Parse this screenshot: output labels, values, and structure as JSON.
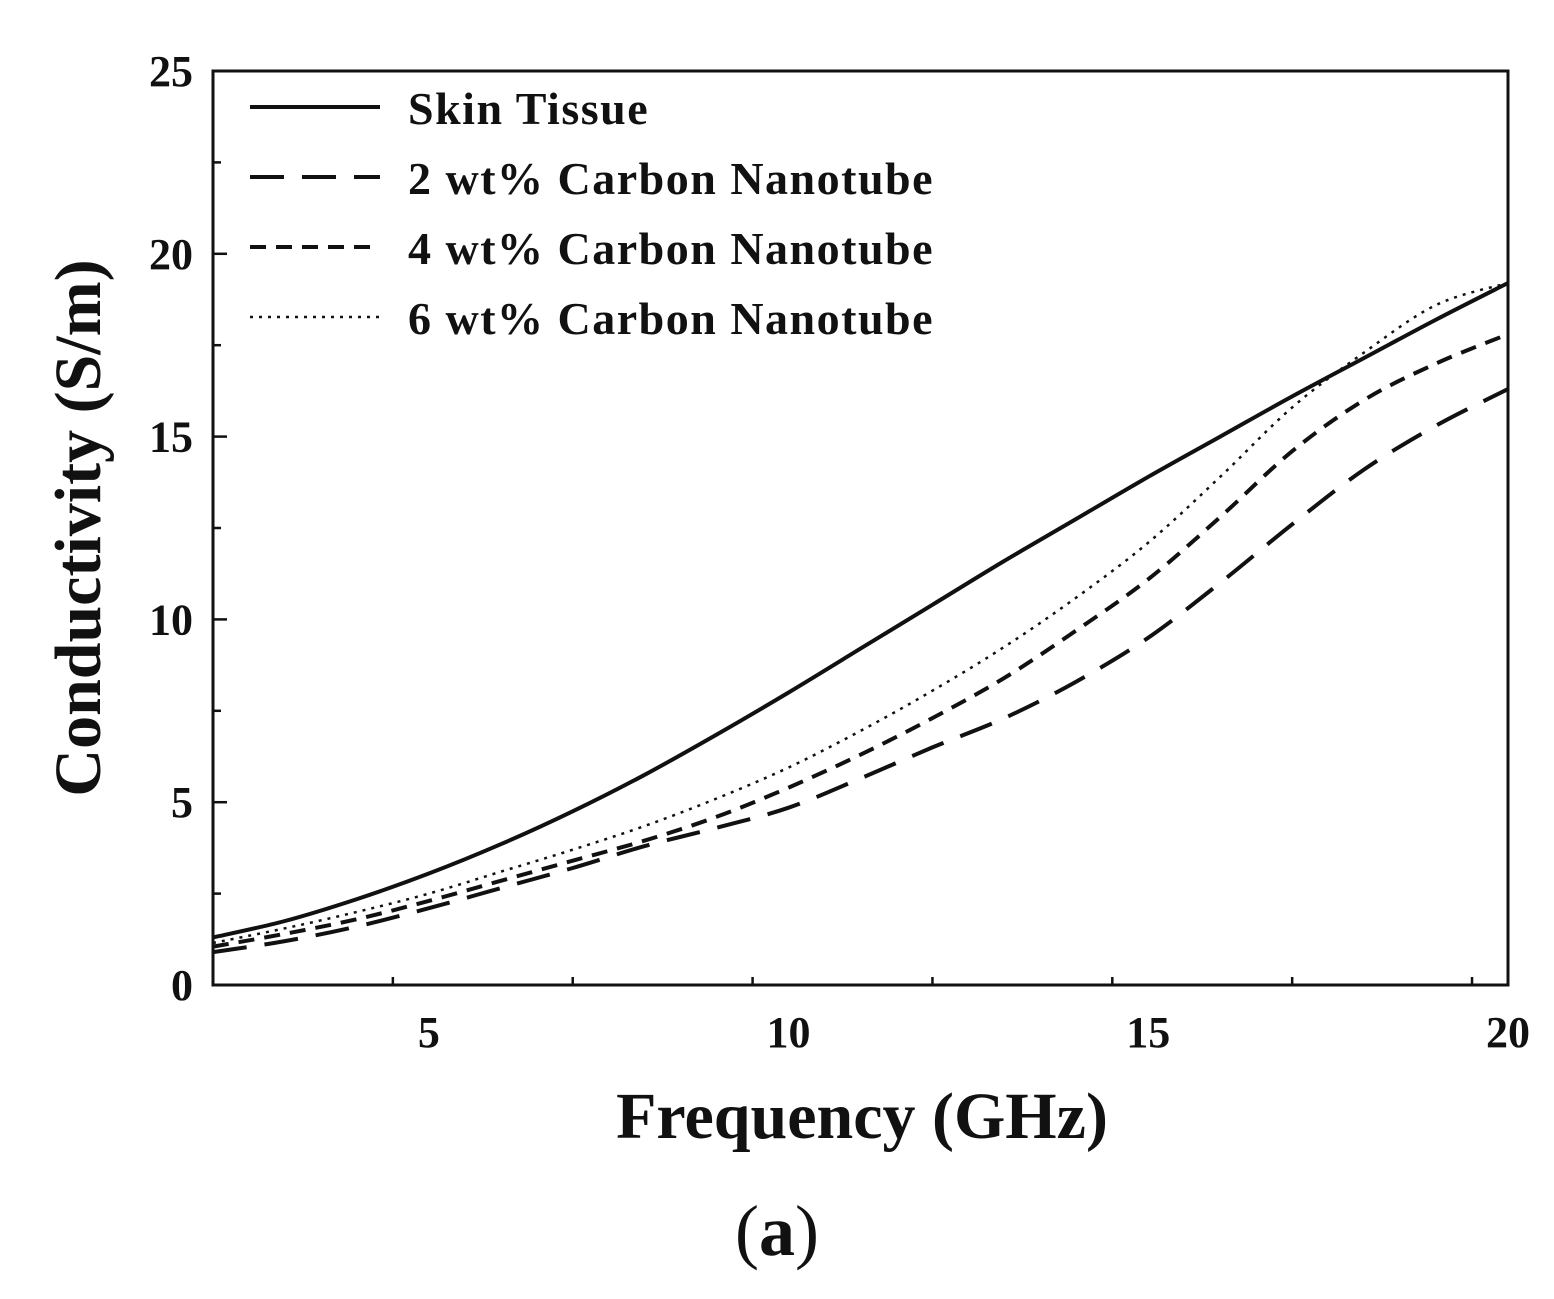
{
  "chart_data": {
    "type": "line",
    "title": "",
    "panel_label": {
      "open": "(",
      "letter": "a",
      "close": ")"
    },
    "xlabel": "Frequency (GHz)",
    "ylabel": "Conductivity (S/m)",
    "xlim": [
      2,
      20
    ],
    "ylim": [
      0,
      25
    ],
    "xticks": [
      5,
      10,
      15,
      20
    ],
    "yticks": [
      0,
      5,
      10,
      15,
      20,
      25
    ],
    "grid": false,
    "legend_position": "top-left",
    "x": [
      2,
      3,
      4,
      5,
      6,
      7,
      8,
      9,
      10,
      11,
      12,
      13,
      14,
      15,
      16,
      17,
      18,
      19,
      20
    ],
    "series": [
      {
        "name": "Skin Tissue",
        "style": "solid",
        "values": [
          1.3,
          1.75,
          2.35,
          3.05,
          3.85,
          4.75,
          5.75,
          6.85,
          8.0,
          9.2,
          10.4,
          11.6,
          12.75,
          13.9,
          15.0,
          16.1,
          17.15,
          18.2,
          19.2
        ]
      },
      {
        "name": "2 wt% Carbon Nanotube",
        "style": "long-dash",
        "values": [
          0.9,
          1.2,
          1.6,
          2.1,
          2.65,
          3.2,
          3.8,
          4.3,
          4.85,
          5.65,
          6.5,
          7.3,
          8.3,
          9.5,
          11.0,
          12.6,
          14.1,
          15.3,
          16.3
        ]
      },
      {
        "name": "4 wt% Carbon Nanotube",
        "style": "short-dash",
        "values": [
          1.05,
          1.4,
          1.8,
          2.3,
          2.85,
          3.4,
          3.95,
          4.6,
          5.4,
          6.3,
          7.3,
          8.4,
          9.7,
          11.1,
          12.8,
          14.6,
          16.0,
          17.0,
          17.8
        ]
      },
      {
        "name": "6 wt% Carbon Nanotube",
        "style": "dotted",
        "values": [
          1.15,
          1.55,
          2.0,
          2.5,
          3.1,
          3.7,
          4.35,
          5.1,
          5.95,
          6.95,
          8.05,
          9.25,
          10.6,
          12.1,
          13.9,
          15.8,
          17.3,
          18.6,
          19.2
        ]
      }
    ]
  }
}
